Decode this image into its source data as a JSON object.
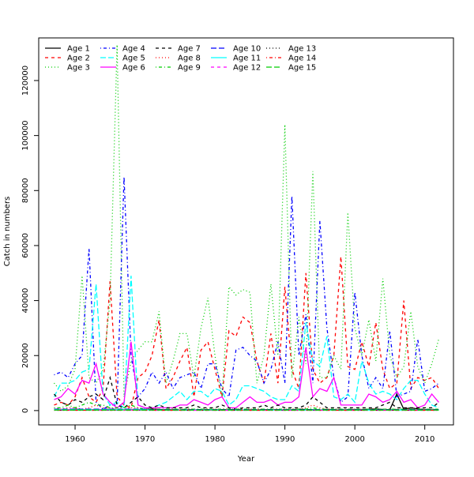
{
  "chart_data": {
    "type": "line",
    "title": "",
    "xlabel": "Year",
    "ylabel": "Catch in numbers",
    "xlim": [
      1954.8,
      2014.1
    ],
    "ylim": [
      -5200,
      135500
    ],
    "x_ticks": [
      1960,
      1970,
      1980,
      1990,
      2000,
      2010
    ],
    "y_ticks": [
      0,
      20000,
      40000,
      60000,
      80000,
      100000,
      120000
    ],
    "grid": false,
    "legend_position": "top-left",
    "x_start": 1957,
    "x_end": 2012,
    "unit_multiplier": 1000,
    "series": [
      {
        "name": "Age 1",
        "color": "#000000",
        "lty": 1,
        "values": [
          0.3,
          0.2,
          0.3,
          0.5,
          0.3,
          0.2,
          0.4,
          0.3,
          0.5,
          0.2,
          0.3,
          0.4,
          0.3,
          0.5,
          0.6,
          0.4,
          0.3,
          0.3,
          0.2,
          0.3,
          0.2,
          0.4,
          0.3,
          0.2,
          0.3,
          0.4,
          0.3,
          0.2,
          0.3,
          0.2,
          0.3,
          0.4,
          0.3,
          0.2,
          0.3,
          0.5,
          0.4,
          0.3,
          0.2,
          0.4,
          0.3,
          0.2,
          0.3,
          0.4,
          0.3,
          0.5,
          0.6,
          0.4,
          0.3,
          6.0,
          0.5,
          1.0,
          0.6,
          0.4,
          0.3,
          0.2
        ]
      },
      {
        "name": "Age 2",
        "color": "#ff0000",
        "lty": 2,
        "values": [
          2,
          3,
          2,
          5,
          12,
          5,
          3,
          8,
          47,
          5,
          2,
          1,
          12,
          14,
          20,
          33,
          8,
          12,
          18,
          23,
          5,
          22,
          25,
          15,
          5,
          29,
          27,
          34,
          32,
          18,
          10,
          28,
          10,
          45,
          15,
          8,
          50,
          15,
          10,
          12,
          20,
          56,
          16,
          15,
          25,
          16,
          32,
          15,
          8,
          10,
          40,
          8,
          12,
          11,
          12,
          8
        ]
      },
      {
        "name": "Age 3",
        "color": "#00cd00",
        "lty": 3,
        "values": [
          10,
          7,
          9,
          15,
          49,
          12,
          10,
          15,
          40,
          133,
          5,
          18,
          22,
          25,
          25,
          36,
          10,
          18,
          28,
          28,
          12,
          30,
          41,
          20,
          5,
          45,
          42,
          44,
          43,
          10,
          20,
          46,
          20,
          104,
          12,
          34,
          17,
          87,
          12,
          12,
          20,
          15,
          72,
          30,
          20,
          33,
          18,
          48,
          20,
          12,
          16,
          36,
          16,
          10,
          17,
          26
        ]
      },
      {
        "name": "Age 4",
        "color": "#0000ff",
        "lty": 4,
        "values": [
          13,
          14,
          12,
          17,
          20,
          59,
          3,
          0.5,
          2,
          2,
          85,
          20,
          5,
          8,
          14,
          10,
          14,
          8,
          12,
          13,
          14,
          8,
          17,
          17,
          8,
          5,
          22,
          23,
          20,
          18,
          10,
          15,
          25,
          10,
          78,
          20,
          35,
          10,
          69,
          30,
          12,
          3,
          5,
          43,
          20,
          8,
          12,
          8,
          29,
          5,
          6,
          7,
          26,
          7,
          8,
          10
        ]
      },
      {
        "name": "Age 5",
        "color": "#00ffff",
        "lty": 5,
        "values": [
          5,
          10,
          10,
          11,
          14,
          15,
          46,
          6,
          2,
          3,
          1,
          49,
          2,
          1,
          1,
          2,
          3,
          5,
          7,
          4,
          7,
          7,
          5,
          8,
          7,
          2,
          4,
          9,
          9,
          8,
          7,
          5,
          4,
          4,
          9,
          7,
          32,
          18,
          16,
          27,
          5,
          4,
          6,
          3,
          18,
          10,
          6,
          7,
          6,
          4,
          8,
          11,
          11,
          6,
          2,
          1
        ]
      },
      {
        "name": "Age 6",
        "color": "#ff00ff",
        "lty": 1,
        "values": [
          4,
          5,
          8,
          6,
          11,
          10,
          17,
          6,
          3,
          1,
          3,
          25,
          2,
          1,
          1,
          1,
          1,
          1,
          2,
          2,
          4,
          3,
          2,
          4,
          5,
          1,
          1,
          3,
          5,
          3,
          3,
          4,
          2,
          3,
          3,
          5,
          23,
          5,
          8,
          7,
          12,
          2,
          2,
          2,
          2,
          6,
          5,
          3,
          4,
          7,
          3,
          4,
          1,
          2,
          6,
          3
        ]
      },
      {
        "name": "Age 7",
        "color": "#000000",
        "lty": 2,
        "values": [
          6,
          3,
          2,
          4,
          3,
          5,
          6,
          4,
          12,
          2,
          1,
          3,
          5,
          2,
          1,
          2,
          1,
          1,
          1,
          1,
          2,
          1,
          1,
          1,
          2,
          1,
          0.5,
          1,
          1,
          1,
          2,
          1,
          2,
          1,
          1,
          1,
          2,
          5,
          3,
          1,
          1,
          1,
          1,
          1,
          1,
          1,
          1,
          2,
          3,
          1,
          1,
          1,
          1,
          1,
          1,
          3
        ]
      },
      {
        "name": "Age 8",
        "color": "#ff0000",
        "lty": 3,
        "values": [
          1,
          0.5,
          1,
          1,
          0.5,
          1,
          2,
          1,
          1,
          0.5,
          0.5,
          1,
          1,
          0.5,
          0.5,
          0.5,
          0.5,
          0.5,
          0.5,
          0.5,
          0.5,
          0.5,
          0.5,
          0.5,
          0.5,
          0.5,
          0.5,
          0.5,
          0.5,
          0.5,
          0.5,
          0.5,
          0.5,
          0.5,
          0.5,
          0.5,
          1,
          2,
          1,
          0.5,
          0.5,
          0.5,
          0.5,
          0.5,
          0.5,
          0.5,
          0.5,
          0.5,
          0.5,
          0.5,
          0.5,
          0.5,
          0.5,
          0.5,
          0.5,
          0.5
        ]
      },
      {
        "name": "Age 9",
        "color": "#00cd00",
        "lty": 4,
        "values": [
          1,
          1,
          2,
          1,
          2,
          3,
          2,
          2,
          1,
          1,
          1,
          2,
          1,
          0.5,
          0.5,
          0.5,
          0.5,
          0.5,
          0.5,
          0.5,
          0.5,
          0.5,
          0.5,
          0.5,
          0.5,
          0.5,
          0.5,
          0.5,
          0.5,
          0.5,
          0.5,
          0.5,
          0.5,
          0.5,
          0.5,
          0.5,
          0.5,
          1,
          0.5,
          0.5,
          0.5,
          0.5,
          0.5,
          0.5,
          0.5,
          0.5,
          0.5,
          0.5,
          0.5,
          0.5,
          0.5,
          0.5,
          0.5,
          0.5,
          0.5,
          0.5
        ]
      },
      {
        "name": "Age 10",
        "color": "#0000ff",
        "lty": 5,
        "values": [
          0.5,
          0.5,
          0.5,
          0.5,
          0.5,
          0.5,
          0.5,
          0.5,
          0.5,
          0.5,
          0.5,
          0.5,
          0.5,
          0.5,
          0.3,
          0.3,
          0.3,
          0.3,
          0.3,
          0.3,
          0.3,
          0.3,
          0.3,
          0.3,
          0.3,
          0.3,
          0.3,
          0.3,
          0.3,
          0.3,
          0.3,
          0.3,
          0.3,
          0.3,
          0.3,
          0.3,
          0.3,
          0.3,
          0.3,
          0.3,
          0.3,
          0.3,
          0.3,
          0.3,
          0.3,
          0.3,
          0.3,
          0.3,
          0.3,
          0.3,
          0.3,
          0.3,
          0.3,
          0.3,
          0.3,
          0.3
        ]
      },
      {
        "name": "Age 11",
        "color": "#00ffff",
        "lty": 1,
        "values": [
          0.3,
          0.3,
          0.3,
          0.3,
          0.3,
          0.3,
          0.3,
          0.3,
          0.3,
          0.3,
          0.3,
          0.3,
          0.3,
          0.3,
          0.2,
          0.2,
          0.2,
          0.2,
          0.2,
          0.2,
          0.2,
          0.2,
          0.2,
          0.2,
          0.2,
          0.2,
          0.2,
          0.2,
          0.2,
          0.2,
          0.2,
          0.2,
          0.2,
          0.2,
          0.2,
          0.2,
          0.2,
          0.2,
          0.2,
          0.2,
          0.2,
          0.2,
          0.2,
          0.2,
          0.2,
          0.2,
          0.2,
          0.2,
          0.2,
          0.2,
          0.2,
          0.2,
          0.2,
          0.2,
          0.2,
          0.2
        ]
      },
      {
        "name": "Age 12",
        "color": "#ff00ff",
        "lty": 2,
        "values": [
          0.2,
          0.2,
          0.2,
          0.2,
          0.2,
          0.2,
          0.2,
          0.2,
          0.2,
          0.2,
          0.2,
          0.2,
          0.2,
          0.2,
          0.1,
          0.1,
          0.1,
          0.1,
          0.1,
          0.1,
          0.1,
          0.1,
          0.1,
          0.1,
          0.1,
          0.1,
          0.1,
          0.1,
          0.1,
          0.1,
          0.1,
          0.1,
          0.1,
          0.1,
          0.1,
          0.1,
          0.1,
          0.1,
          0.1,
          0.1,
          0.1,
          0.1,
          0.1,
          0.1,
          0.1,
          0.1,
          0.1,
          0.1,
          0.1,
          0.1,
          0.1,
          0.1,
          0.1,
          0.1,
          0.1,
          0.1
        ]
      },
      {
        "name": "Age 13",
        "color": "#000000",
        "lty": 3,
        "values": [
          0.1,
          0.1,
          0.1,
          0.1,
          0.1,
          0.1,
          0.1,
          0.1,
          0.1,
          0.1,
          0.1,
          0.1,
          0.1,
          0.1,
          0.1,
          0.1,
          0.1,
          0.1,
          0.1,
          0.1,
          0.1,
          0.1,
          0.1,
          0.1,
          0.1,
          0.1,
          0.1,
          0.1,
          0.1,
          0.1,
          0.1,
          0.1,
          0.1,
          0.1,
          0.1,
          0.1,
          0.1,
          0.1,
          0.1,
          0.1,
          0.1,
          0.1,
          0.1,
          0.1,
          0.1,
          0.1,
          0.1,
          0.1,
          0.1,
          0.1,
          0.1,
          0.1,
          0.1,
          0.1,
          0.1,
          0.1
        ]
      },
      {
        "name": "Age 14",
        "color": "#ff0000",
        "lty": 4,
        "values": [
          0.1,
          0.1,
          0.1,
          0.1,
          0.1,
          0.1,
          0.1,
          0.1,
          0.1,
          0.1,
          0.1,
          0.1,
          0.1,
          0.1,
          0.1,
          0.1,
          0.1,
          0.1,
          0.1,
          0.1,
          0.1,
          0.1,
          0.1,
          0.1,
          0.1,
          0.1,
          0.1,
          0.1,
          0.1,
          0.1,
          0.1,
          0.1,
          0.1,
          0.1,
          0.1,
          0.1,
          0.1,
          0.1,
          0.1,
          0.1,
          0.1,
          0.1,
          0.1,
          0.1,
          0.1,
          0.1,
          0.1,
          0.1,
          0.1,
          0.1,
          0.1,
          0.1,
          0.1,
          0.1,
          0.1,
          0.1
        ]
      },
      {
        "name": "Age 15",
        "color": "#00cd00",
        "lty": 5,
        "values": [
          0.2,
          0.2,
          0.2,
          0.2,
          0.2,
          0.2,
          0.2,
          0.2,
          0.2,
          0.2,
          0.2,
          0.2,
          0.2,
          0.2,
          0.2,
          0.2,
          0.2,
          0.2,
          0.2,
          0.2,
          0.2,
          0.2,
          0.2,
          0.2,
          0.2,
          0.2,
          0.2,
          0.2,
          0.2,
          0.2,
          0.2,
          0.2,
          0.2,
          0.2,
          0.2,
          0.2,
          0.2,
          0.2,
          0.2,
          0.2,
          0.2,
          0.2,
          0.2,
          0.2,
          0.2,
          0.2,
          0.2,
          0.2,
          0.2,
          0.2,
          0.2,
          0.2,
          0.2,
          0.2,
          0.2,
          0.2
        ]
      }
    ]
  }
}
